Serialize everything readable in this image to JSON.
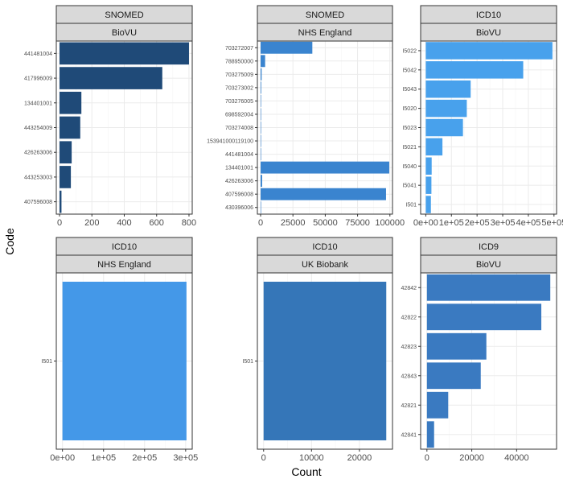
{
  "chart_data": {
    "type": "bar",
    "orientation": "horizontal",
    "xlabel": "Count",
    "ylabel": "Code",
    "grid": true,
    "colors": {
      "strip_fill": "#d9d9d9",
      "strip_border": "#333333",
      "panel_border": "#333333",
      "grid_major": "#ebebeb",
      "grid_minor": "#f5f5f5"
    },
    "panels": [
      {
        "vocabulary": "SNOMED",
        "source": "BioVU",
        "color": "#1f4a78",
        "categories": [
          "441481004",
          "417996009",
          "134401001",
          "443254009",
          "426263006",
          "443253003",
          "407596008"
        ],
        "values": [
          800,
          635,
          135,
          128,
          75,
          70,
          12
        ],
        "xlim": [
          -20,
          820
        ],
        "xticks": [
          0,
          200,
          400,
          600,
          800
        ],
        "xtick_labels": [
          "0",
          "200",
          "400",
          "600",
          "800"
        ]
      },
      {
        "vocabulary": "SNOMED",
        "source": "NHS England",
        "color": "#3a84cf",
        "categories": [
          "703272007",
          "788950000",
          "703275009",
          "703273002",
          "703276005",
          "698592004",
          "703274008",
          "153941000119100",
          "441481004",
          "134401001",
          "426263006",
          "407596008",
          "430396006"
        ],
        "values": [
          40000,
          3500,
          800,
          500,
          150,
          100,
          50,
          50,
          50,
          99500,
          1200,
          97000,
          50
        ],
        "xlim": [
          -2500,
          102000
        ],
        "xticks": [
          0,
          25000,
          50000,
          75000,
          100000
        ],
        "xtick_labels": [
          "0",
          "25000",
          "50000",
          "75000",
          "100000"
        ]
      },
      {
        "vocabulary": "ICD10",
        "source": "BioVU",
        "color": "#48a1ec",
        "categories": [
          "I5022",
          "I5042",
          "I5043",
          "I5020",
          "I5023",
          "I5021",
          "I5040",
          "I5041",
          "I501"
        ],
        "values": [
          494000,
          380000,
          175000,
          160000,
          145000,
          65000,
          23000,
          22000,
          20000
        ],
        "xlim": [
          -20000,
          510000
        ],
        "xticks": [
          0,
          100000,
          200000,
          300000,
          400000,
          500000
        ],
        "xtick_labels": [
          "0e+00",
          "1e+05",
          "2e+05",
          "3e+05",
          "4e+05",
          "5e+05"
        ]
      },
      {
        "vocabulary": "ICD10",
        "source": "NHS England",
        "color": "#4498e8",
        "categories": [
          "I501"
        ],
        "values": [
          302000
        ],
        "xlim": [
          -15000,
          316000
        ],
        "xticks": [
          0,
          100000,
          200000,
          300000
        ],
        "xtick_labels": [
          "0e+00",
          "1e+05",
          "2e+05",
          "3e+05"
        ]
      },
      {
        "vocabulary": "ICD10",
        "source": "UK Biobank",
        "color": "#3576b8",
        "categories": [
          "I501"
        ],
        "values": [
          25600
        ],
        "xlim": [
          -1300,
          26900
        ],
        "xticks": [
          0,
          10000,
          20000
        ],
        "xtick_labels": [
          "0",
          "10000",
          "20000"
        ]
      },
      {
        "vocabulary": "ICD9",
        "source": "BioVU",
        "color": "#3a7ac1",
        "categories": [
          "42842",
          "42822",
          "42823",
          "42843",
          "42821",
          "42841"
        ],
        "values": [
          55000,
          51000,
          26500,
          24000,
          9500,
          3200
        ],
        "xlim": [
          -2800,
          57800
        ],
        "xticks": [
          0,
          20000,
          40000
        ],
        "xtick_labels": [
          "0",
          "20000",
          "40000"
        ]
      }
    ]
  }
}
